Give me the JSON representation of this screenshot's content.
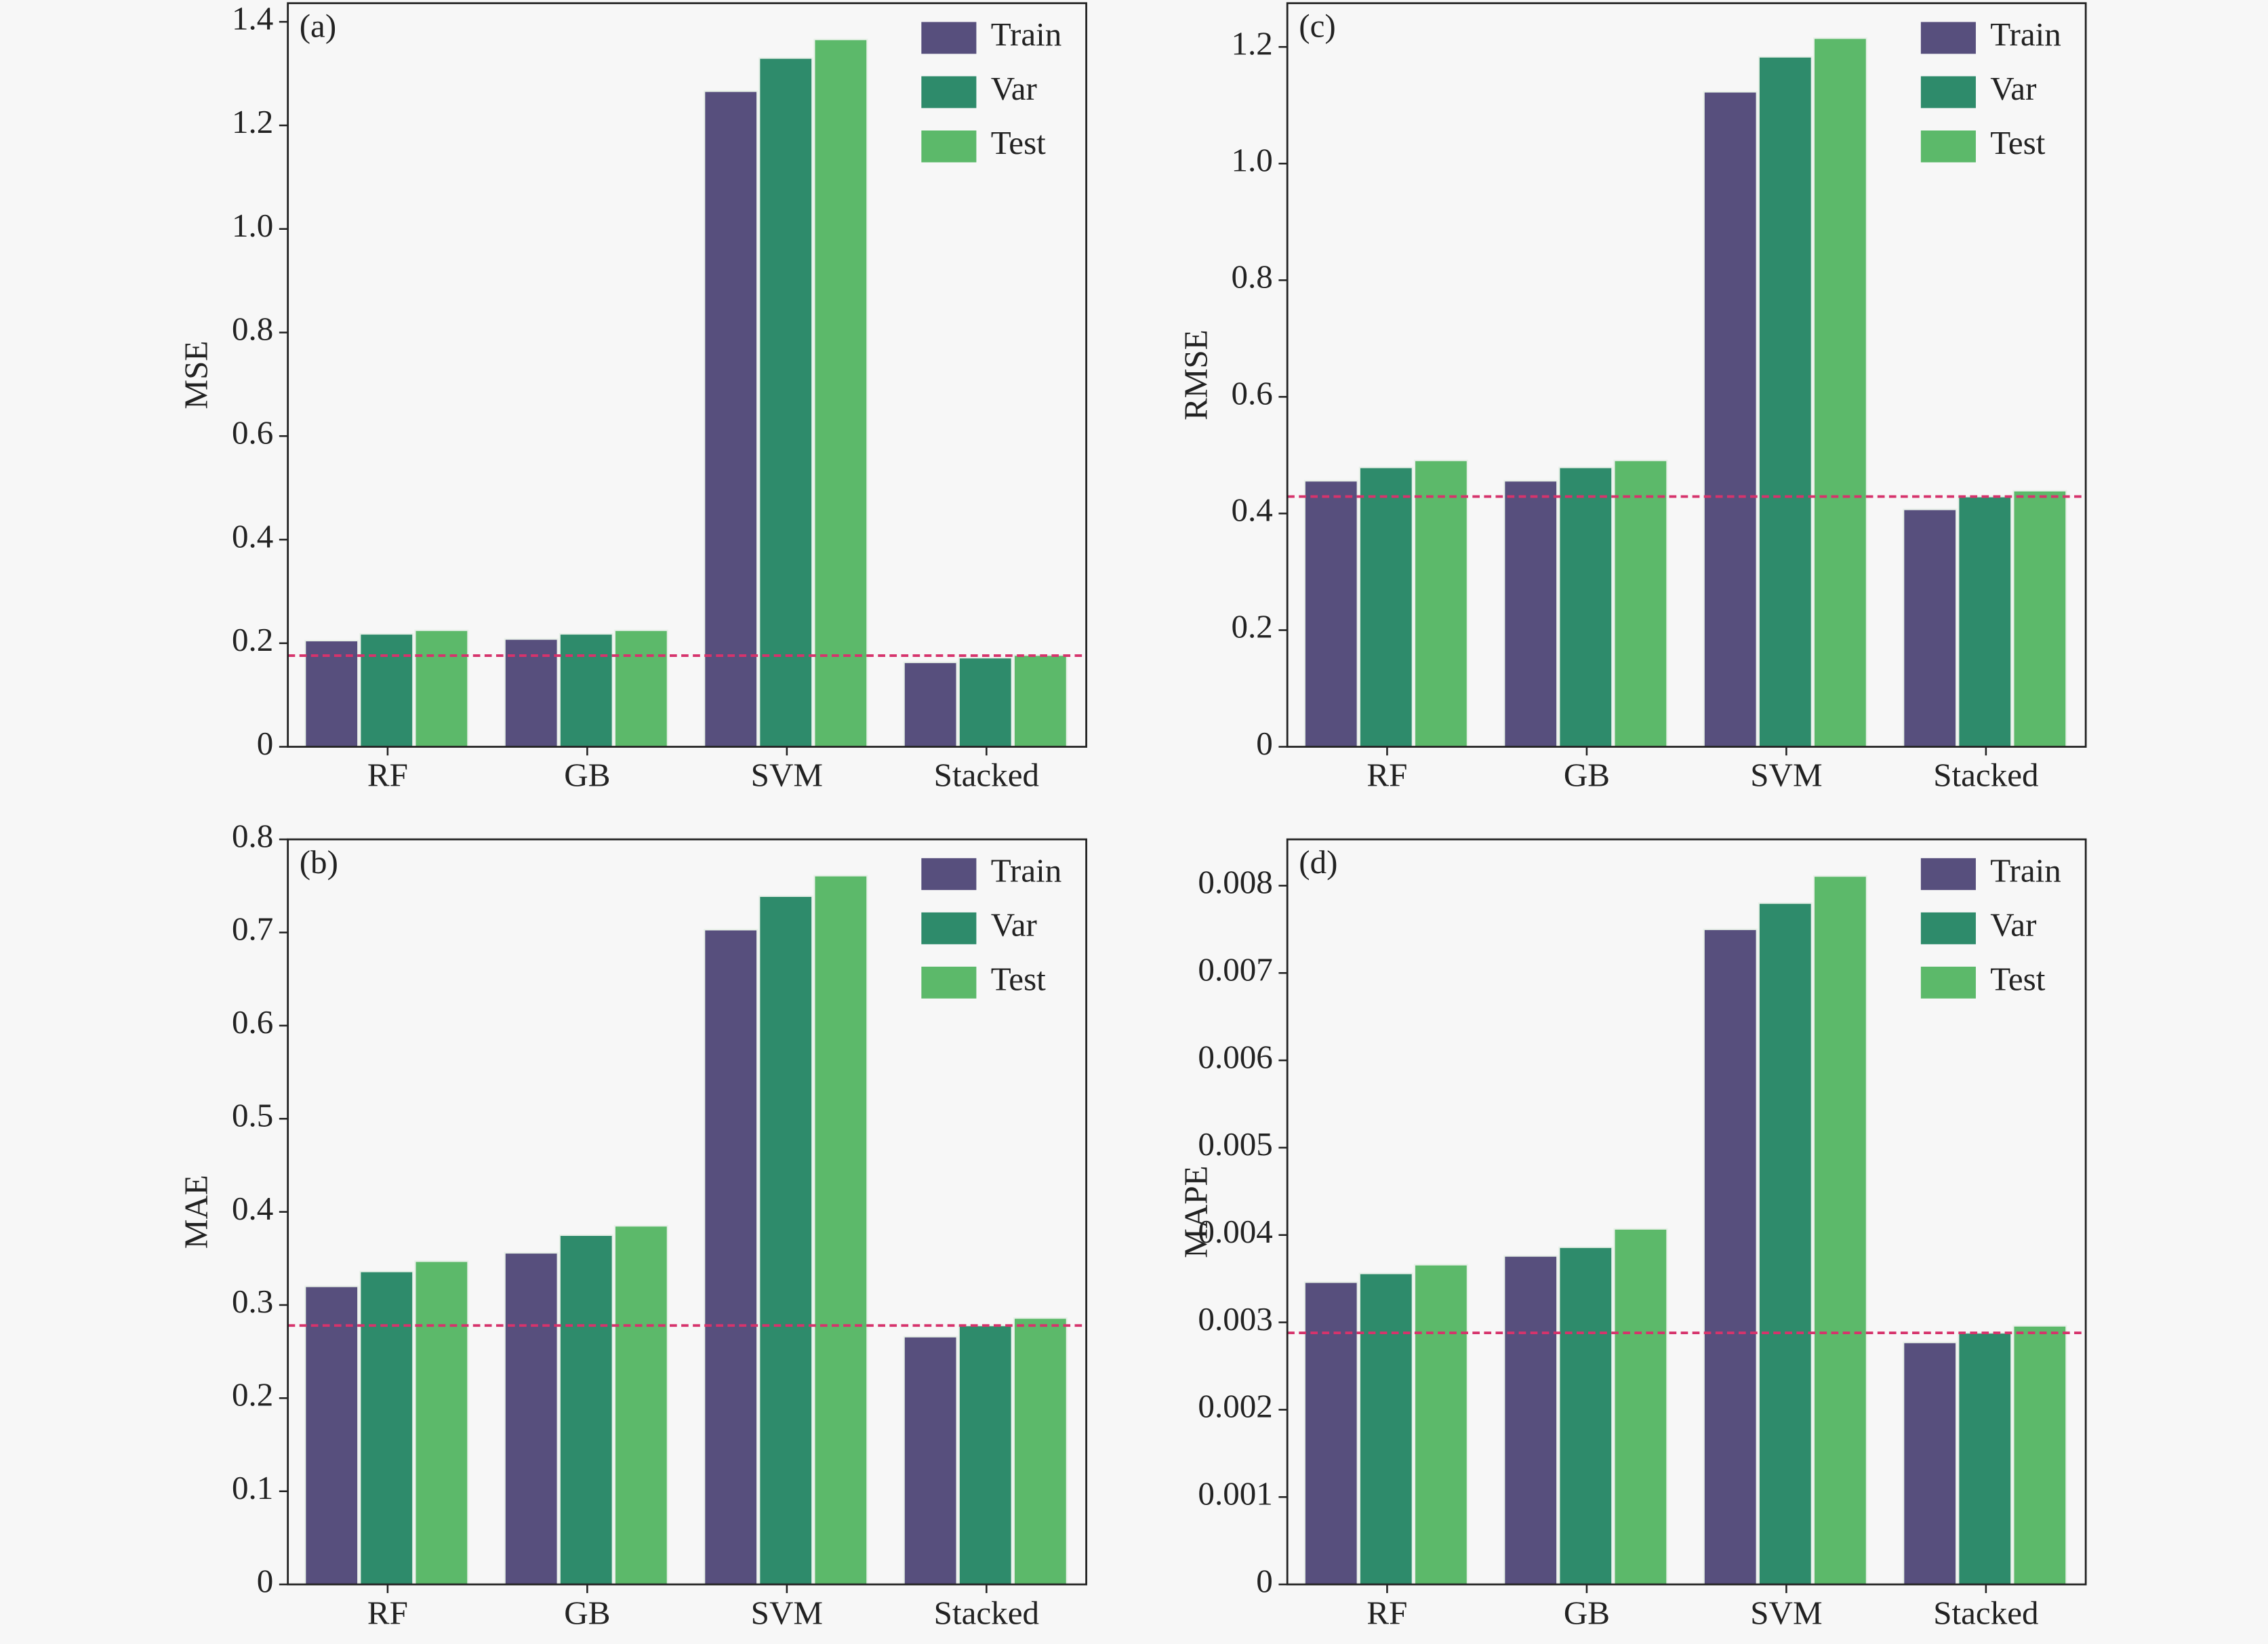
{
  "chart_data": [
    {
      "type": "bar",
      "label": "(a)",
      "ylabel": "MSE",
      "categories": [
        "RF",
        "GB",
        "SVM",
        "Stacked"
      ],
      "series": [
        {
          "name": "Train",
          "color": "#574f7d",
          "values": [
            0.205,
            0.208,
            1.266,
            0.163
          ]
        },
        {
          "name": "Var",
          "color": "#2e8b6b",
          "values": [
            0.218,
            0.218,
            1.33,
            0.172
          ]
        },
        {
          "name": "Test",
          "color": "#5cb96a",
          "values": [
            0.225,
            0.225,
            1.366,
            0.177
          ]
        }
      ],
      "ylim": [
        0,
        1.436
      ],
      "yticks": [
        0,
        0.2,
        0.4,
        0.6,
        0.8,
        {
          "value": 1,
          "label": "1.0"
        },
        1.2,
        1.4
      ],
      "hline": {
        "value": 0.176,
        "color": "#d6336c"
      }
    },
    {
      "type": "bar",
      "label": "(b)",
      "ylabel": "MAE",
      "categories": [
        "RF",
        "GB",
        "SVM",
        "Stacked"
      ],
      "series": [
        {
          "name": "Train",
          "color": "#574f7d",
          "values": [
            0.32,
            0.356,
            0.703,
            0.266
          ]
        },
        {
          "name": "Var",
          "color": "#2e8b6b",
          "values": [
            0.336,
            0.375,
            0.739,
            0.278
          ]
        },
        {
          "name": "Test",
          "color": "#5cb96a",
          "values": [
            0.347,
            0.385,
            0.761,
            0.286
          ]
        }
      ],
      "ylim": [
        0,
        0.8
      ],
      "yticks": [
        0,
        0.1,
        0.2,
        0.3,
        0.4,
        0.5,
        0.6,
        0.7,
        0.8
      ],
      "hline": {
        "value": 0.278,
        "color": "#d6336c"
      }
    },
    {
      "type": "bar",
      "label": "(c)",
      "ylabel": "RMSE",
      "categories": [
        "RF",
        "GB",
        "SVM",
        "Stacked"
      ],
      "series": [
        {
          "name": "Train",
          "color": "#574f7d",
          "values": [
            0.456,
            0.456,
            1.123,
            0.407
          ]
        },
        {
          "name": "Var",
          "color": "#2e8b6b",
          "values": [
            0.479,
            0.479,
            1.183,
            0.429
          ]
        },
        {
          "name": "Test",
          "color": "#5cb96a",
          "values": [
            0.491,
            0.491,
            1.215,
            0.439
          ]
        }
      ],
      "ylim": [
        0,
        1.275
      ],
      "yticks": [
        0,
        0.2,
        0.4,
        0.6,
        0.8,
        {
          "value": 1,
          "label": "1.0"
        },
        1.2
      ],
      "hline": {
        "value": 0.429,
        "color": "#d6336c"
      }
    },
    {
      "type": "bar",
      "label": "(d)",
      "ylabel": "MAPE",
      "categories": [
        "RF",
        "GB",
        "SVM",
        "Stacked"
      ],
      "series": [
        {
          "name": "Train",
          "color": "#574f7d",
          "values": [
            0.00346,
            0.00376,
            0.0075,
            0.00277
          ]
        },
        {
          "name": "Var",
          "color": "#2e8b6b",
          "values": [
            0.00356,
            0.00386,
            0.0078,
            0.00288
          ]
        },
        {
          "name": "Test",
          "color": "#5cb96a",
          "values": [
            0.00366,
            0.00407,
            0.00811,
            0.00296
          ]
        }
      ],
      "ylim": [
        0,
        0.00853
      ],
      "yticks": [
        0,
        0.001,
        0.002,
        0.003,
        0.004,
        0.005,
        0.006,
        0.007,
        0.008
      ],
      "hline": {
        "value": 0.00288,
        "color": "#d6336c"
      }
    }
  ]
}
